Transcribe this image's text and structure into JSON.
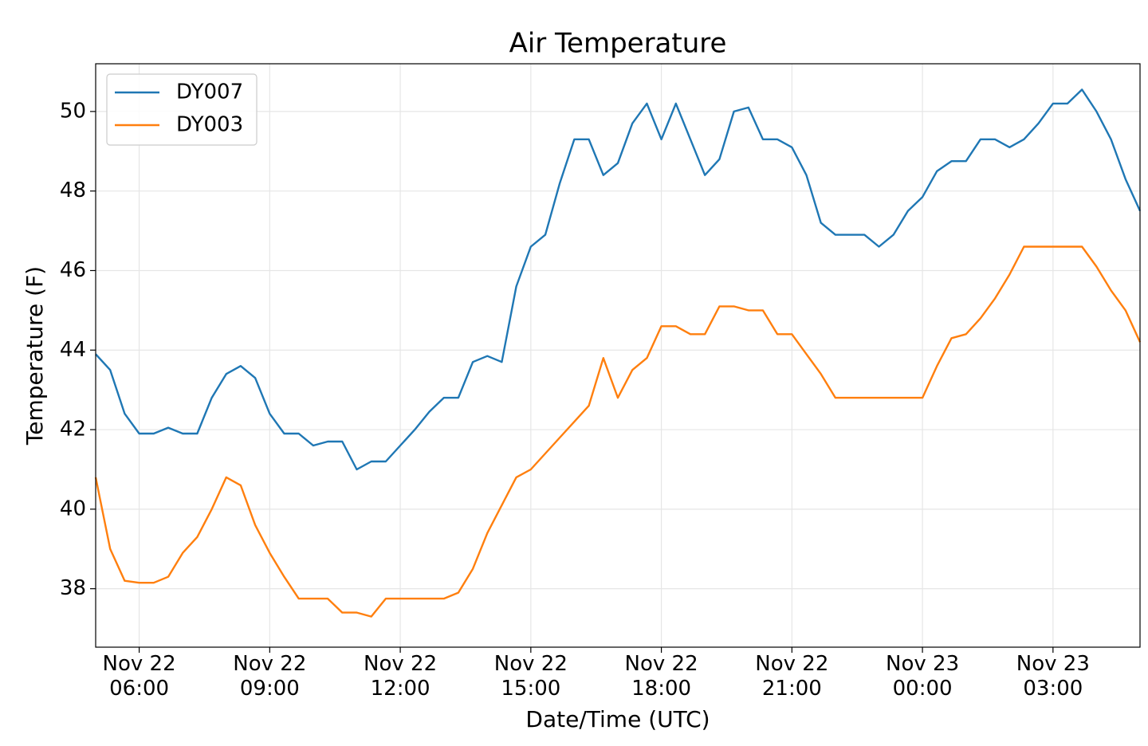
{
  "chart_data": {
    "type": "line",
    "title": "Air Temperature",
    "xlabel": "Date/Time (UTC)",
    "ylabel": "Temperature (F)",
    "x": [
      "Nov 22 05:00",
      "Nov 22 05:20",
      "Nov 22 05:40",
      "Nov 22 06:00",
      "Nov 22 06:20",
      "Nov 22 06:40",
      "Nov 22 07:00",
      "Nov 22 07:20",
      "Nov 22 07:40",
      "Nov 22 08:00",
      "Nov 22 08:20",
      "Nov 22 08:40",
      "Nov 22 09:00",
      "Nov 22 09:20",
      "Nov 22 09:40",
      "Nov 22 10:00",
      "Nov 22 10:20",
      "Nov 22 10:40",
      "Nov 22 11:00",
      "Nov 22 11:20",
      "Nov 22 11:40",
      "Nov 22 12:00",
      "Nov 22 12:20",
      "Nov 22 12:40",
      "Nov 22 13:00",
      "Nov 22 13:20",
      "Nov 22 13:40",
      "Nov 22 14:00",
      "Nov 22 14:20",
      "Nov 22 14:40",
      "Nov 22 15:00",
      "Nov 22 15:20",
      "Nov 22 15:40",
      "Nov 22 16:00",
      "Nov 22 16:20",
      "Nov 22 16:40",
      "Nov 22 17:00",
      "Nov 22 17:20",
      "Nov 22 17:40",
      "Nov 22 18:00",
      "Nov 22 18:20",
      "Nov 22 18:40",
      "Nov 22 19:00",
      "Nov 22 19:20",
      "Nov 22 19:40",
      "Nov 22 20:00",
      "Nov 22 20:20",
      "Nov 22 20:40",
      "Nov 22 21:00",
      "Nov 22 21:20",
      "Nov 22 21:40",
      "Nov 22 22:00",
      "Nov 22 22:20",
      "Nov 22 22:40",
      "Nov 22 23:00",
      "Nov 22 23:20",
      "Nov 22 23:40",
      "Nov 23 00:00",
      "Nov 23 00:20",
      "Nov 23 00:40",
      "Nov 23 01:00",
      "Nov 23 01:20",
      "Nov 23 01:40",
      "Nov 23 02:00",
      "Nov 23 02:20",
      "Nov 23 02:40",
      "Nov 23 03:00",
      "Nov 23 03:20",
      "Nov 23 03:40",
      "Nov 23 04:00",
      "Nov 23 04:20",
      "Nov 23 04:40",
      "Nov 23 05:00"
    ],
    "series": [
      {
        "name": "DY007",
        "color": "#1f77b4",
        "values": [
          43.9,
          43.5,
          42.4,
          41.9,
          41.9,
          42.05,
          41.9,
          41.9,
          42.8,
          43.4,
          43.6,
          43.3,
          42.4,
          41.9,
          41.9,
          41.6,
          41.7,
          41.7,
          41.0,
          41.2,
          41.2,
          41.6,
          42.0,
          42.45,
          42.8,
          42.8,
          43.7,
          43.85,
          43.7,
          45.6,
          46.6,
          46.9,
          48.2,
          49.3,
          49.3,
          48.4,
          48.7,
          49.7,
          50.2,
          49.3,
          50.2,
          49.3,
          48.4,
          48.8,
          50.0,
          50.1,
          49.3,
          49.3,
          49.1,
          48.4,
          47.2,
          46.9,
          46.9,
          46.9,
          46.6,
          46.9,
          47.5,
          47.85,
          48.5,
          48.75,
          48.75,
          49.3,
          49.3,
          49.1,
          49.3,
          49.7,
          50.2,
          50.2,
          50.55,
          50.0,
          49.3,
          48.3,
          47.5
        ]
      },
      {
        "name": "DY003",
        "color": "#ff7f0e",
        "values": [
          40.8,
          39.0,
          38.2,
          38.15,
          38.15,
          38.3,
          38.9,
          39.3,
          40.0,
          40.8,
          40.6,
          39.6,
          38.9,
          38.3,
          37.75,
          37.75,
          37.75,
          37.4,
          37.4,
          37.3,
          37.75,
          37.75,
          37.75,
          37.75,
          37.75,
          37.9,
          38.5,
          39.4,
          40.1,
          40.8,
          41.0,
          41.4,
          41.8,
          42.2,
          42.6,
          43.8,
          42.8,
          43.5,
          43.8,
          44.6,
          44.6,
          44.4,
          44.4,
          45.1,
          45.1,
          45.0,
          45.0,
          44.4,
          44.4,
          43.9,
          43.4,
          42.8,
          42.8,
          42.8,
          42.8,
          42.8,
          42.8,
          42.8,
          43.6,
          44.3,
          44.4,
          44.8,
          45.3,
          45.9,
          46.6,
          46.6,
          46.6,
          46.6,
          46.6,
          46.1,
          45.5,
          45.0,
          44.2
        ]
      }
    ],
    "xlim": [
      "Nov 22 05:00",
      "Nov 23 05:00"
    ],
    "xticks": [
      {
        "value": "Nov 22 06:00",
        "label": "Nov 22\n06:00"
      },
      {
        "value": "Nov 22 09:00",
        "label": "Nov 22\n09:00"
      },
      {
        "value": "Nov 22 12:00",
        "label": "Nov 22\n12:00"
      },
      {
        "value": "Nov 22 15:00",
        "label": "Nov 22\n15:00"
      },
      {
        "value": "Nov 22 18:00",
        "label": "Nov 22\n18:00"
      },
      {
        "value": "Nov 22 21:00",
        "label": "Nov 22\n21:00"
      },
      {
        "value": "Nov 23 00:00",
        "label": "Nov 23\n00:00"
      },
      {
        "value": "Nov 23 03:00",
        "label": "Nov 23\n03:00"
      }
    ],
    "ylim": [
      36.53,
      51.2
    ],
    "yticks": [
      38,
      40,
      42,
      44,
      46,
      48,
      50
    ],
    "grid": true,
    "legend": "upper left"
  }
}
